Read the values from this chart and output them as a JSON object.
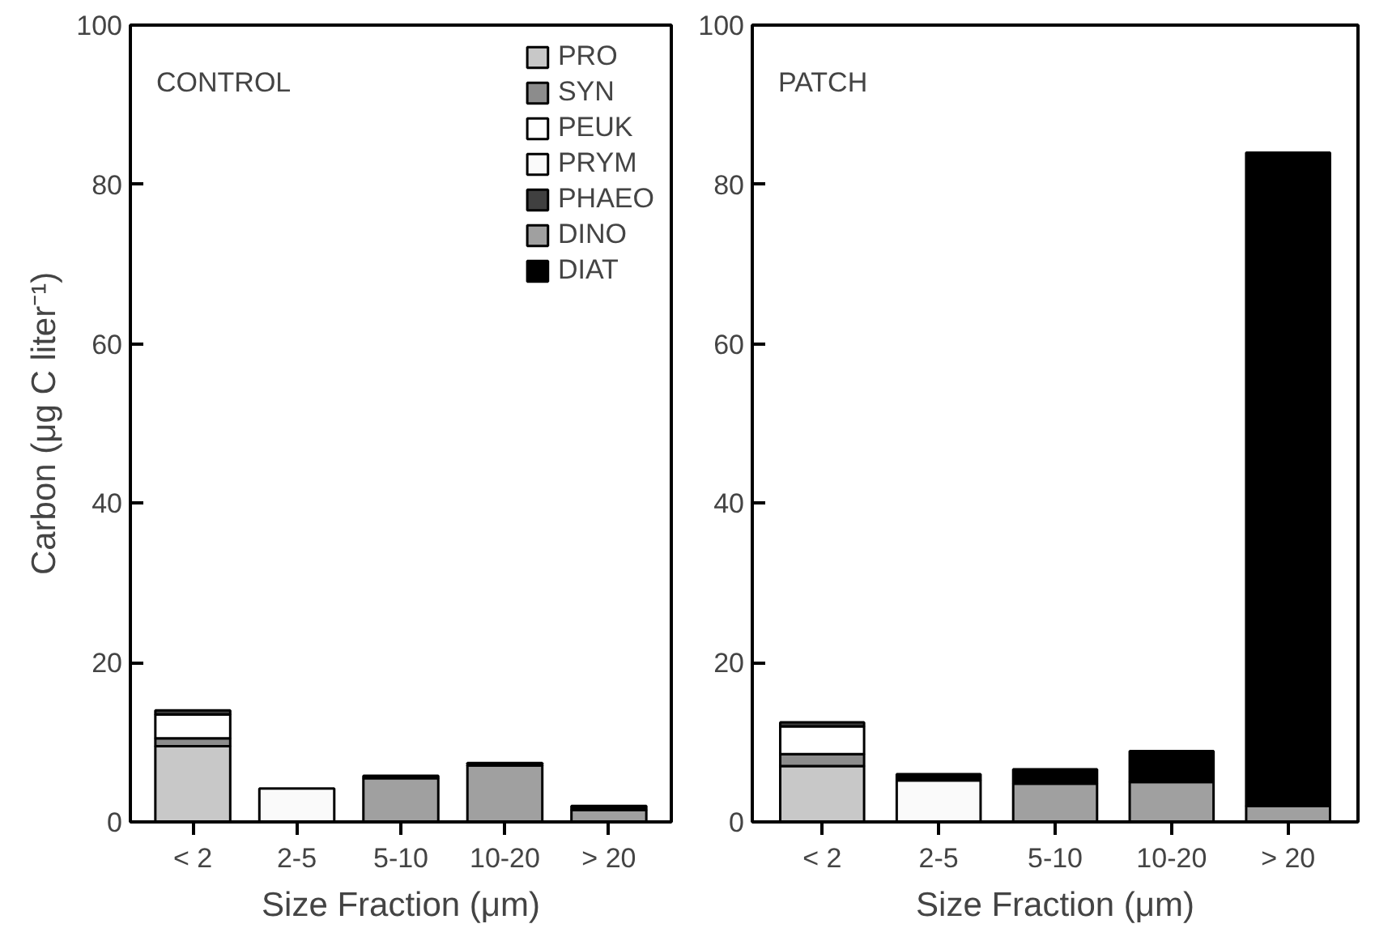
{
  "chart_data": [
    {
      "type": "bar",
      "stacked": true,
      "ylabel": "Carbon (μg C liter⁻¹)",
      "xlabel": "Size Fraction (μm)",
      "annotations": [
        "CONTROL"
      ],
      "categories": [
        "< 2",
        "2-5",
        "5-10",
        "10-20",
        "> 20"
      ],
      "ylim": [
        0,
        100
      ],
      "yticks": [
        0,
        20,
        40,
        60,
        80,
        100
      ],
      "legend": "top right",
      "series": [
        {
          "name": "PRO",
          "color": "#c8c8c8",
          "values": [
            9.5,
            null,
            null,
            null,
            null
          ]
        },
        {
          "name": "SYN",
          "color": "#8c8c8c",
          "values": [
            1.0,
            null,
            null,
            null,
            null
          ]
        },
        {
          "name": "PEUK",
          "color": "#ffffff",
          "values": [
            3.0,
            null,
            null,
            null,
            null
          ]
        },
        {
          "name": "PRYM",
          "color": "#fafafa",
          "values": [
            null,
            4.2,
            null,
            null,
            null
          ]
        },
        {
          "name": "PHAEO",
          "color": "#404040",
          "values": [
            0.5,
            null,
            null,
            null,
            null
          ]
        },
        {
          "name": "DINO",
          "color": "#a0a0a0",
          "values": [
            null,
            null,
            5.5,
            7.1,
            1.5
          ]
        },
        {
          "name": "DIAT",
          "color": "#000000",
          "values": [
            null,
            null,
            0.3,
            0.3,
            0.5
          ]
        }
      ]
    },
    {
      "type": "bar",
      "stacked": true,
      "xlabel": "Size Fraction (μm)",
      "annotations": [
        "PATCH"
      ],
      "categories": [
        "< 2",
        "2-5",
        "5-10",
        "10-20",
        "> 20"
      ],
      "ylim": [
        0,
        100
      ],
      "yticks": [
        0,
        20,
        40,
        60,
        80,
        100
      ],
      "series": [
        {
          "color": "#c8c8c8",
          "values": [
            7.0,
            null,
            null,
            null,
            null
          ]
        },
        {
          "color": "#8c8c8c",
          "values": [
            1.5,
            null,
            null,
            null,
            null
          ]
        },
        {
          "color": "#ffffff",
          "values": [
            3.5,
            null,
            null,
            null,
            null
          ]
        },
        {
          "color": "#fafafa",
          "values": [
            null,
            5.2,
            null,
            null,
            null
          ]
        },
        {
          "color": "#404040",
          "values": [
            0.5,
            null,
            null,
            null,
            null
          ]
        },
        {
          "color": "#a0a0a0",
          "values": [
            null,
            null,
            4.8,
            5.0,
            2.0
          ]
        },
        {
          "color": "#000000",
          "values": [
            null,
            0.8,
            1.8,
            3.9,
            82
          ]
        }
      ]
    }
  ]
}
